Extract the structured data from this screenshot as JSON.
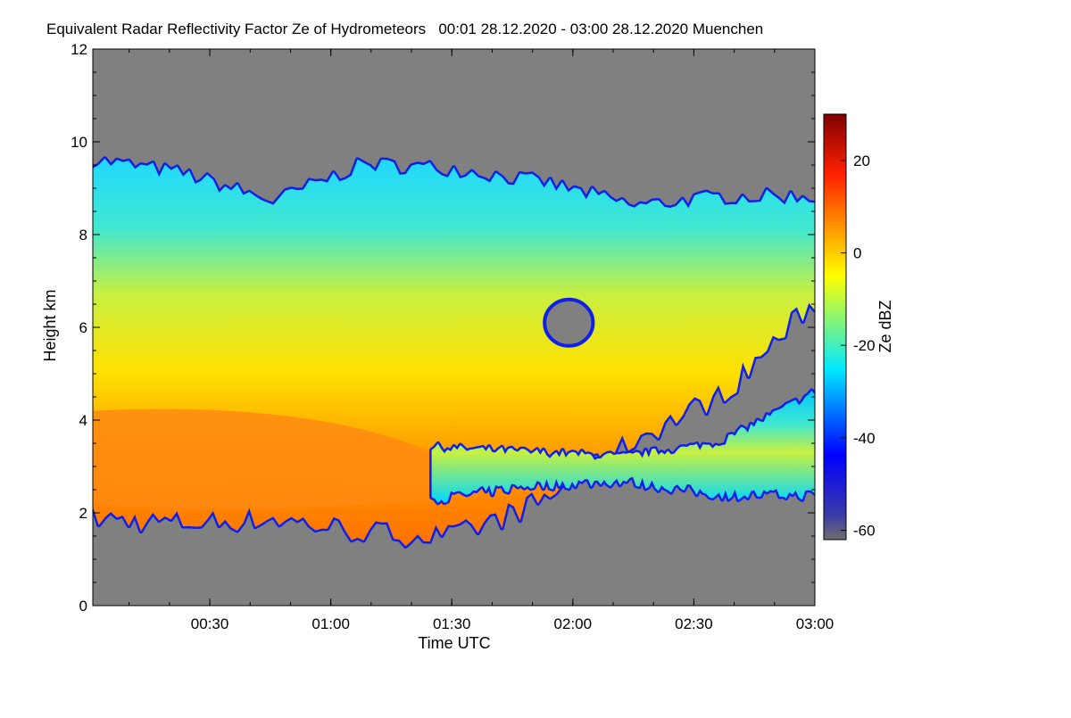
{
  "chart_data": {
    "type": "heatmap",
    "title": "Equivalent Radar Reflectivity Factor Ze of Hydrometeors   00:01 28.12.2020 - 03:00 28.12.2020 Muenchen",
    "xlabel": "Time UTC",
    "ylabel": "Height km",
    "xlim_minutes": [
      1,
      180
    ],
    "x_ticks": [
      {
        "label": "00:30",
        "value": 30
      },
      {
        "label": "01:00",
        "value": 60
      },
      {
        "label": "01:30",
        "value": 90
      },
      {
        "label": "02:00",
        "value": 120
      },
      {
        "label": "02:30",
        "value": 150
      },
      {
        "label": "03:00",
        "value": 180
      }
    ],
    "ylim": [
      0,
      12
    ],
    "y_ticks": [
      0,
      2,
      4,
      6,
      8,
      10,
      12
    ],
    "colorbar": {
      "label": "Ze dBZ",
      "range": [
        -62,
        30
      ],
      "ticks": [
        20,
        0,
        -20,
        -40,
        -60
      ],
      "colors": [
        "#6e6e6e",
        "#0000ff",
        "#00e8ff",
        "#ffff00",
        "#ff0000",
        "#800000"
      ]
    },
    "background_color": "#808080",
    "echo_regions": [
      {
        "name": "upper cloud top",
        "time_range": [
          1,
          180
        ],
        "top_km": [
          9.6,
          9.3,
          8.7,
          9.5,
          9.4,
          9.1,
          8.6,
          8.8,
          8.8
        ],
        "base_km": [
          1.9,
          1.8,
          1.9,
          1.6,
          1.5,
          2.3,
          3.6,
          4.6,
          6.6
        ]
      },
      {
        "name": "strongest echo layer",
        "time_range": [
          1,
          95
        ],
        "ze_dbz_peak": 10,
        "height_km": [
          2.2,
          4.2
        ]
      },
      {
        "name": "lower layer",
        "time_range": [
          85,
          180
        ],
        "top_km": [
          3.4,
          3.3,
          3.2,
          3.5,
          4.6
        ],
        "base_km": [
          2.3,
          2.6,
          2.7,
          2.4,
          2.4
        ]
      },
      {
        "name": "hole",
        "time_range": [
          113,
          125
        ],
        "height_km": [
          5.6,
          6.6
        ]
      }
    ]
  }
}
